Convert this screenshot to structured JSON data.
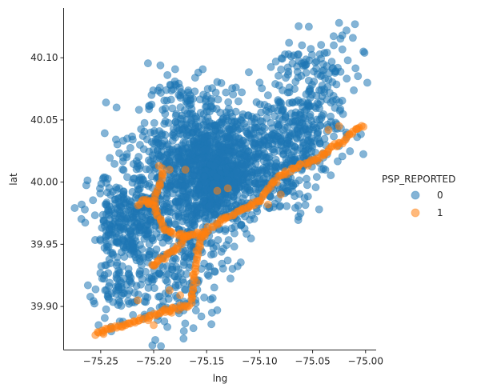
{
  "chart_data": {
    "type": "scatter",
    "title": "",
    "xlabel": "lng",
    "ylabel": "lat",
    "xlim": [
      -75.285,
      -74.99
    ],
    "ylim": [
      39.865,
      40.14
    ],
    "xticks": [
      -75.25,
      -75.2,
      -75.15,
      -75.1,
      -75.05,
      -75.0
    ],
    "xtick_labels": [
      "−75.25",
      "−75.20",
      "−75.15",
      "−75.10",
      "−75.05",
      "−75.00"
    ],
    "yticks": [
      39.9,
      39.95,
      40.0,
      40.05,
      40.1
    ],
    "ytick_labels": [
      "39.90",
      "39.95",
      "40.00",
      "40.05",
      "40.10"
    ],
    "grid": false,
    "legend": {
      "title": "PSP_REPORTED",
      "placement": "right",
      "entries": [
        "0",
        "1"
      ]
    },
    "colors": {
      "0": "#1f77b4",
      "1": "#ff7f0e"
    },
    "marker_alpha": 0.55,
    "series": [
      {
        "name": "0",
        "clusters": [
          {
            "center": [
              -75.145,
              40.005
            ],
            "spread": [
              0.02,
              0.022
            ],
            "count": 700
          },
          {
            "center": [
              -75.12,
              40.02
            ],
            "spread": [
              0.03,
              0.025
            ],
            "count": 320
          },
          {
            "center": [
              -75.18,
              40.02
            ],
            "spread": [
              0.022,
              0.022
            ],
            "count": 240
          },
          {
            "center": [
              -75.23,
              39.96
            ],
            "spread": [
              0.015,
              0.025
            ],
            "count": 260
          },
          {
            "center": [
              -75.175,
              39.94
            ],
            "spread": [
              0.022,
              0.03
            ],
            "count": 240
          },
          {
            "center": [
              -75.07,
              40.04
            ],
            "spread": [
              0.025,
              0.015
            ],
            "count": 240
          },
          {
            "center": [
              -75.05,
              40.08
            ],
            "spread": [
              0.02,
              0.02
            ],
            "count": 130
          },
          {
            "center": [
              -75.17,
              40.07
            ],
            "spread": [
              0.015,
              0.008
            ],
            "count": 45
          },
          {
            "center": [
              -75.225,
              39.915
            ],
            "spread": [
              0.018,
              0.015
            ],
            "count": 60
          },
          {
            "center": [
              -75.205,
              39.975
            ],
            "spread": [
              0.012,
              0.015
            ],
            "count": 90
          },
          {
            "center": [
              -75.08,
              40.0
            ],
            "spread": [
              0.02,
              0.012
            ],
            "count": 90
          }
        ],
        "points": [
          [
            -75.025,
            40.128
          ],
          [
            -75.018,
            40.122
          ],
          [
            -75.01,
            40.127
          ],
          [
            -75.012,
            40.116
          ],
          [
            -75.022,
            40.118
          ],
          [
            -75.03,
            40.11
          ],
          [
            -75.001,
            40.104
          ],
          [
            -75.002,
            40.105
          ],
          [
            -75.14,
            39.897
          ],
          [
            -75.145,
            39.895
          ],
          [
            -75.155,
            39.892
          ],
          [
            -75.268,
            39.982
          ],
          [
            -75.265,
            39.978
          ],
          [
            -75.245,
            40.064
          ],
          [
            -75.235,
            40.06
          ],
          [
            -75.252,
            39.885
          ],
          [
            -75.24,
            39.88
          ],
          [
            -75.232,
            39.888
          ],
          [
            -75.21,
            39.89
          ],
          [
            -75.205,
            39.92
          ],
          [
            -75.12,
            40.065
          ],
          [
            -75.1,
            40.08
          ],
          [
            -75.06,
            40.11
          ],
          [
            -75.04,
            40.095
          ],
          [
            -75.188,
            40.074
          ],
          [
            -75.18,
            40.081
          ],
          [
            -75.225,
            40.035
          ],
          [
            -75.215,
            40.015
          ]
        ]
      },
      {
        "name": "1",
        "paths": [
          [
            [
              -75.002,
              40.046
            ],
            [
              -75.01,
              40.042
            ],
            [
              -75.02,
              40.034
            ],
            [
              -75.035,
              40.025
            ],
            [
              -75.05,
              40.018
            ],
            [
              -75.065,
              40.012
            ],
            [
              -75.08,
              40.006
            ],
            [
              -75.09,
              39.996
            ],
            [
              -75.1,
              39.985
            ],
            [
              -75.115,
              39.978
            ],
            [
              -75.13,
              39.972
            ],
            [
              -75.142,
              39.966
            ],
            [
              -75.15,
              39.961
            ],
            [
              -75.155,
              39.955
            ],
            [
              -75.158,
              39.945
            ],
            [
              -75.16,
              39.935
            ],
            [
              -75.162,
              39.925
            ],
            [
              -75.162,
              39.915
            ],
            [
              -75.165,
              39.905
            ],
            [
              -75.168,
              39.9
            ],
            [
              -75.175,
              39.899
            ],
            [
              -75.19,
              39.896
            ],
            [
              -75.2,
              39.893
            ],
            [
              -75.21,
              39.89
            ],
            [
              -75.225,
              39.886
            ],
            [
              -75.24,
              39.882
            ],
            [
              -75.255,
              39.878
            ]
          ],
          [
            [
              -75.19,
              40.009
            ],
            [
              -75.194,
              40.0
            ],
            [
              -75.198,
              39.99
            ],
            [
              -75.2,
              39.982
            ],
            [
              -75.198,
              39.975
            ],
            [
              -75.194,
              39.968
            ],
            [
              -75.188,
              39.962
            ],
            [
              -75.18,
              39.958
            ],
            [
              -75.17,
              39.957
            ],
            [
              -75.16,
              39.958
            ],
            [
              -75.15,
              39.96
            ]
          ],
          [
            [
              -75.2,
              39.982
            ],
            [
              -75.21,
              39.985
            ],
            [
              -75.215,
              39.978
            ]
          ],
          [
            [
              -75.17,
              39.958
            ],
            [
              -75.175,
              39.95
            ],
            [
              -75.182,
              39.945
            ],
            [
              -75.19,
              39.94
            ],
            [
              -75.198,
              39.935
            ],
            [
              -75.203,
              39.93
            ]
          ]
        ],
        "points": [
          [
            -75.195,
            40.013
          ],
          [
            -75.185,
            40.01
          ],
          [
            -75.17,
            40.01
          ],
          [
            -75.203,
            39.985
          ],
          [
            -75.205,
            39.984
          ],
          [
            -75.185,
            39.913
          ],
          [
            -75.175,
            39.909
          ],
          [
            -75.13,
            39.995
          ],
          [
            -75.14,
            39.993
          ],
          [
            -75.19,
            39.897
          ],
          [
            -75.183,
            39.895
          ],
          [
            -75.2,
            39.885
          ],
          [
            -75.255,
            39.877
          ],
          [
            -75.248,
            39.879
          ],
          [
            -75.215,
            39.905
          ],
          [
            -75.1,
            39.985
          ],
          [
            -75.092,
            39.982
          ],
          [
            -75.08,
            39.99
          ],
          [
            -75.035,
            40.042
          ],
          [
            -75.025,
            40.045
          ]
        ]
      }
    ]
  }
}
